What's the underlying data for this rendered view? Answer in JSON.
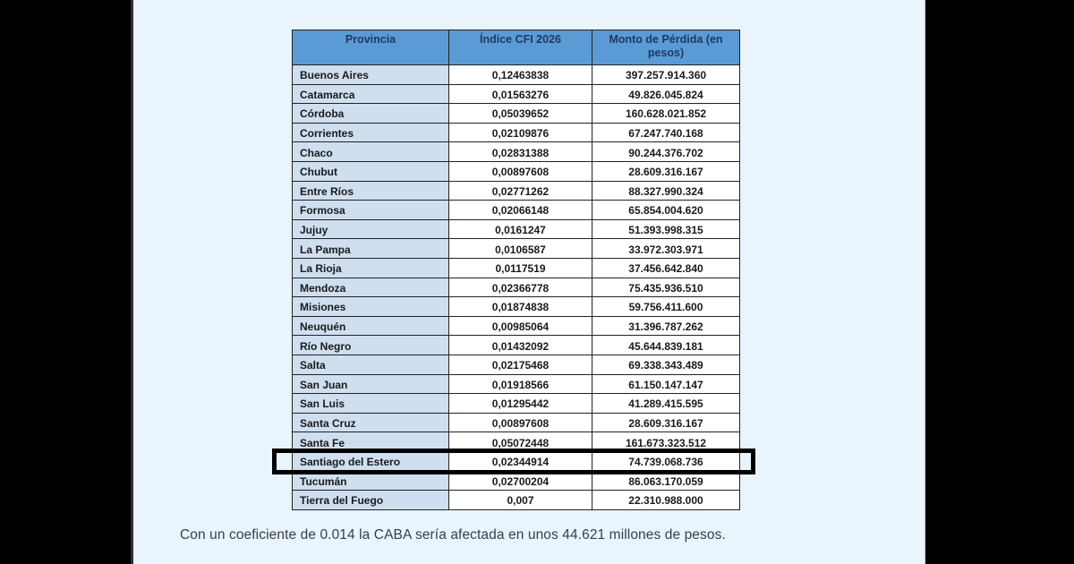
{
  "page": {
    "background_color": "#000000",
    "content_background_color": "#e9f4fc"
  },
  "table": {
    "columns": [
      {
        "label": "Provincia"
      },
      {
        "label": "Índice CFI 2026"
      },
      {
        "label": "Monto de Pérdida (en pesos)"
      }
    ],
    "header_bg_color": "#5b9bd5",
    "header_text_color": "#1f3864",
    "province_cell_bg_color": "#cfdff0",
    "highlight_box_color": "#000000",
    "rows": [
      {
        "provincia": "Buenos Aires",
        "indice": "0,12463838",
        "monto": "397.257.914.360",
        "highlighted": false
      },
      {
        "provincia": "Catamarca",
        "indice": "0,01563276",
        "monto": "49.826.045.824",
        "highlighted": false
      },
      {
        "provincia": "Córdoba",
        "indice": "0,05039652",
        "monto": "160.628.021.852",
        "highlighted": false
      },
      {
        "provincia": "Corrientes",
        "indice": "0,02109876",
        "monto": "67.247.740.168",
        "highlighted": false
      },
      {
        "provincia": "Chaco",
        "indice": "0,02831388",
        "monto": "90.244.376.702",
        "highlighted": false
      },
      {
        "provincia": "Chubut",
        "indice": "0,00897608",
        "monto": "28.609.316.167",
        "highlighted": false
      },
      {
        "provincia": "Entre Ríos",
        "indice": "0,02771262",
        "monto": "88.327.990.324",
        "highlighted": false
      },
      {
        "provincia": "Formosa",
        "indice": "0,02066148",
        "monto": "65.854.004.620",
        "highlighted": false
      },
      {
        "provincia": "Jujuy",
        "indice": "0,0161247",
        "monto": "51.393.998.315",
        "highlighted": false
      },
      {
        "provincia": "La Pampa",
        "indice": "0,0106587",
        "monto": "33.972.303.971",
        "highlighted": false
      },
      {
        "provincia": "La Rioja",
        "indice": "0,0117519",
        "monto": "37.456.642.840",
        "highlighted": false
      },
      {
        "provincia": "Mendoza",
        "indice": "0,02366778",
        "monto": "75.435.936.510",
        "highlighted": false
      },
      {
        "provincia": "Misiones",
        "indice": "0,01874838",
        "monto": "59.756.411.600",
        "highlighted": false
      },
      {
        "provincia": "Neuquén",
        "indice": "0,00985064",
        "monto": "31.396.787.262",
        "highlighted": false
      },
      {
        "provincia": "Río Negro",
        "indice": "0,01432092",
        "monto": "45.644.839.181",
        "highlighted": false
      },
      {
        "provincia": "Salta",
        "indice": "0,02175468",
        "monto": "69.338.343.489",
        "highlighted": false
      },
      {
        "provincia": "San Juan",
        "indice": "0,01918566",
        "monto": "61.150.147.147",
        "highlighted": false
      },
      {
        "provincia": "San Luis",
        "indice": "0,01295442",
        "monto": "41.289.415.595",
        "highlighted": false
      },
      {
        "provincia": "Santa Cruz",
        "indice": "0,00897608",
        "monto": "28.609.316.167",
        "highlighted": false
      },
      {
        "provincia": "Santa Fe",
        "indice": "0,05072448",
        "monto": "161.673.323.512",
        "highlighted": false
      },
      {
        "provincia": "Santiago del Estero",
        "indice": "0,02344914",
        "monto": "74.739.068.736",
        "highlighted": true
      },
      {
        "provincia": "Tucumán",
        "indice": "0,02700204",
        "monto": "86.063.170.059",
        "highlighted": false
      },
      {
        "provincia": "Tierra del Fuego",
        "indice": "0,007",
        "monto": "22.310.988.000",
        "highlighted": false
      }
    ]
  },
  "caption": {
    "text": "Con un coeficiente de 0.014 la CABA sería afectada en unos 44.621 millones de pesos."
  }
}
